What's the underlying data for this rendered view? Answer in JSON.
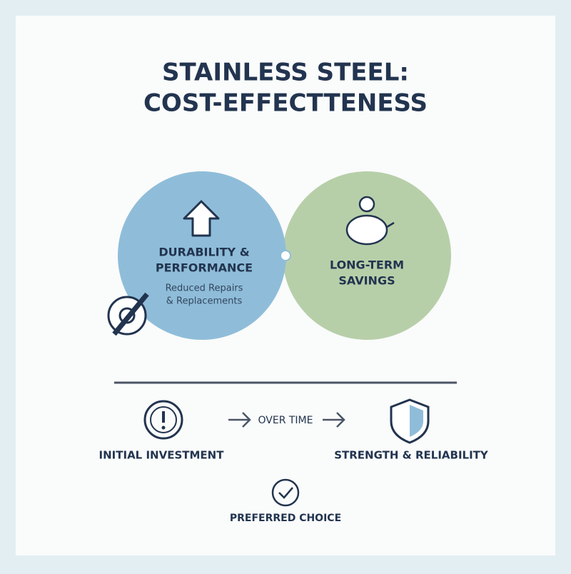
{
  "header": {
    "title_line1": "STAINLESS STEEL:",
    "title_line2": "COST-EFFECTTENESS"
  },
  "circles": [
    {
      "title_line1": "DURABILITY &",
      "title_line2": "PERFORMANCE",
      "sub_line1": "Reduced Repairs",
      "sub_line2": "& Replacements"
    },
    {
      "title_line1": "LONG-TERM",
      "title_line2": "SAVINGS"
    }
  ],
  "timeline": {
    "start": "INITIAL INVESTMENT",
    "middle": "OVER TIME",
    "end": "STRENGTH & RELIABILITY"
  },
  "footer": {
    "label": "PREFERRED CHOICE"
  }
}
